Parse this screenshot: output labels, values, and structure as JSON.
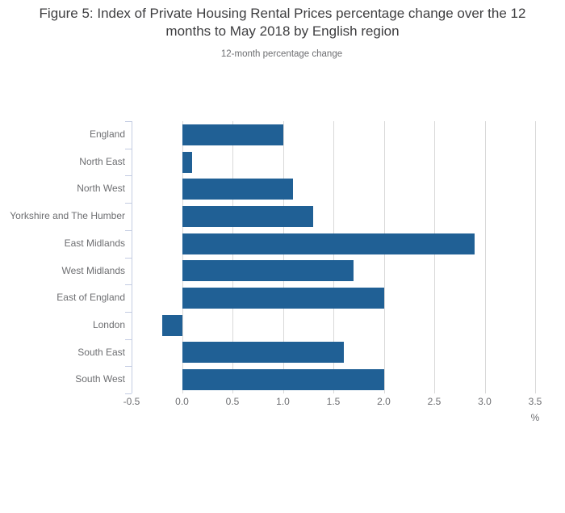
{
  "chart_data": {
    "type": "bar",
    "orientation": "horizontal",
    "title": "Figure 5: Index of Private Housing Rental Prices percentage change over the 12 months to May 2018 by English region",
    "subtitle": "12-month percentage change",
    "categories": [
      "England",
      "North East",
      "North West",
      "Yorkshire and The Humber",
      "East Midlands",
      "West Midlands",
      "East of England",
      "London",
      "South East",
      "South West"
    ],
    "values": [
      1.0,
      0.1,
      1.1,
      1.3,
      2.9,
      1.7,
      2.0,
      -0.2,
      1.6,
      2.0
    ],
    "xlabel": "%",
    "ylabel": "",
    "xlim": [
      -0.5,
      3.5
    ],
    "xticks": [
      -0.5,
      0,
      0.5,
      1,
      1.5,
      2,
      2.5,
      3,
      3.5
    ],
    "xtick_labels": [
      "-0.5",
      "0.0",
      "0.5",
      "1.0",
      "1.5",
      "2.0",
      "2.5",
      "3.0",
      "3.5"
    ],
    "grid": true,
    "legend": "none",
    "bar_color": "#206095",
    "gridline_color": "#d9d9d9",
    "axis_color": "#c3cce2",
    "text_color": "#6d6e71",
    "title_color": "#3e3e40"
  }
}
